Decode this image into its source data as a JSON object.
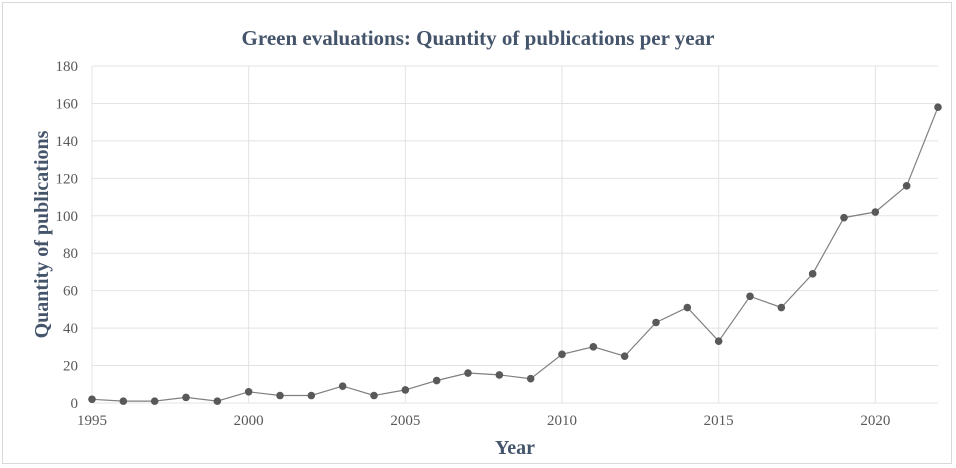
{
  "chart_data": {
    "type": "line",
    "title": "Green evaluations: Quantity of publications per year",
    "xlabel": "Year",
    "ylabel": "Quantity of publications",
    "xlim": [
      1995,
      2022
    ],
    "ylim": [
      0,
      180
    ],
    "x_ticks": [
      "1995",
      "2000",
      "2005",
      "2010",
      "2015",
      "2020"
    ],
    "y_ticks": [
      "0",
      "20",
      "40",
      "60",
      "80",
      "100",
      "120",
      "140",
      "160",
      "180"
    ],
    "grid": true,
    "legend": "none",
    "colors": {
      "line": "#7f7f7f",
      "marker": "#595959",
      "grid": "#e3e3e3",
      "title": "#44546a"
    },
    "x": [
      1995,
      1996,
      1997,
      1998,
      1999,
      2000,
      2001,
      2002,
      2003,
      2004,
      2005,
      2006,
      2007,
      2008,
      2009,
      2010,
      2011,
      2012,
      2013,
      2014,
      2015,
      2016,
      2017,
      2018,
      2019,
      2020,
      2021,
      2022
    ],
    "y": [
      2,
      1,
      1,
      3,
      1,
      6,
      4,
      4,
      9,
      4,
      7,
      12,
      16,
      15,
      13,
      26,
      30,
      25,
      43,
      51,
      33,
      57,
      51,
      69,
      99,
      102,
      116,
      158
    ]
  }
}
